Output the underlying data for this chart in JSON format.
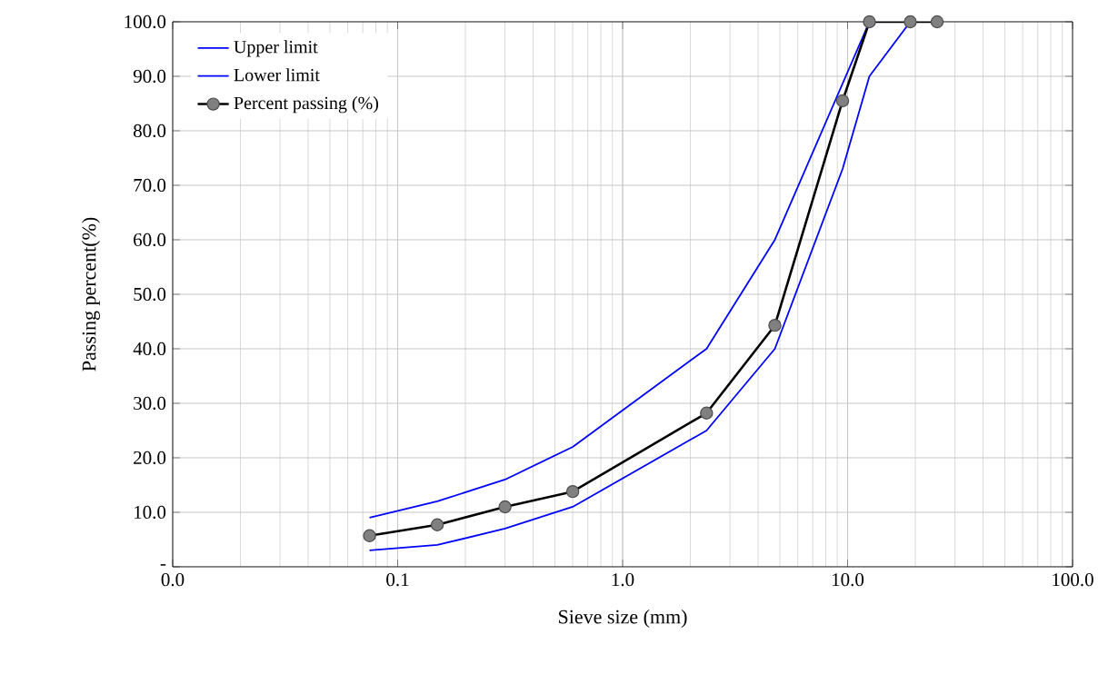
{
  "chart_data": {
    "type": "line",
    "xlabel": "Sieve size (mm)",
    "ylabel": "Passing percent(%)",
    "log": "x",
    "grid": true,
    "legend": "top left",
    "xlim": [
      0.01,
      100
    ],
    "xticks": [
      {
        "value": 0.01,
        "label": "0.0"
      },
      0.1,
      {
        "value": 1,
        "label": "1.0"
      },
      {
        "value": 10,
        "label": "10.0"
      },
      {
        "value": 100,
        "label": "100.0"
      }
    ],
    "ylim": [
      0,
      100
    ],
    "yticks": [
      {
        "value": 0,
        "label": "-"
      },
      {
        "value": 10,
        "label": "10.0"
      },
      {
        "value": 20,
        "label": "20.0"
      },
      {
        "value": 30,
        "label": "30.0"
      },
      {
        "value": 40,
        "label": "40.0"
      },
      {
        "value": 50,
        "label": "50.0"
      },
      {
        "value": 60,
        "label": "60.0"
      },
      {
        "value": 70,
        "label": "70.0"
      },
      {
        "value": 80,
        "label": "80.0"
      },
      {
        "value": 90,
        "label": "90.0"
      },
      {
        "value": 100,
        "label": "100.0"
      }
    ],
    "series": [
      {
        "name": "Upper limit",
        "color": "#0000ff",
        "marker": "none",
        "x": [
          0.075,
          0.15,
          0.3,
          0.6,
          2.36,
          4.75,
          12.5,
          19
        ],
        "values": [
          9,
          12,
          16,
          22,
          40,
          60,
          100,
          100
        ]
      },
      {
        "name": "Lower limit",
        "color": "#0000ff",
        "marker": "none",
        "x": [
          0.075,
          0.15,
          0.3,
          0.6,
          2.36,
          4.75,
          9.5,
          12.5,
          19
        ],
        "values": [
          3,
          4,
          7,
          11,
          25,
          40,
          73,
          90,
          100
        ]
      },
      {
        "name": "Percent passing (%)",
        "color": "#000000",
        "marker": "circle",
        "x": [
          0.075,
          0.15,
          0.3,
          0.6,
          2.36,
          4.75,
          9.5,
          12.5,
          19,
          25
        ],
        "values": [
          5.7,
          7.7,
          11,
          13.8,
          28.2,
          44.3,
          85.5,
          100,
          100,
          100
        ]
      }
    ]
  }
}
